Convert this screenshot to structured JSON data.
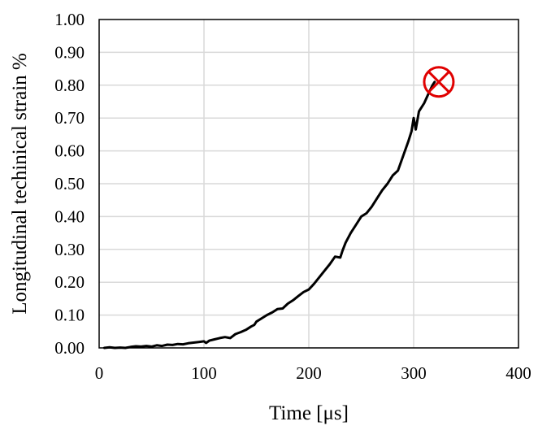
{
  "chart_data": {
    "type": "line",
    "title": "",
    "xlabel": "Time [μs]",
    "ylabel": "Longitudinal techinical strain %",
    "xlim": [
      0,
      400
    ],
    "ylim": [
      0,
      1.0
    ],
    "xticks": [
      0,
      100,
      200,
      300,
      400
    ],
    "xtick_labels": [
      "0",
      "100",
      "200",
      "300",
      "400"
    ],
    "yticks": [
      0,
      0.1,
      0.2,
      0.3,
      0.4,
      0.5,
      0.6,
      0.7,
      0.8,
      0.9,
      1.0
    ],
    "ytick_labels": [
      "0.00",
      "0.10",
      "0.20",
      "0.30",
      "0.40",
      "0.50",
      "0.60",
      "0.70",
      "0.80",
      "0.90",
      "1.00"
    ],
    "grid": true,
    "legend": "none",
    "series": [
      {
        "color": "#000000",
        "x": [
          5,
          10,
          15,
          20,
          25,
          30,
          35,
          40,
          45,
          50,
          55,
          60,
          65,
          70,
          75,
          80,
          85,
          90,
          95,
          100,
          102,
          105,
          110,
          115,
          120,
          125,
          130,
          135,
          140,
          145,
          148,
          150,
          155,
          160,
          165,
          170,
          175,
          180,
          185,
          190,
          195,
          200,
          205,
          210,
          215,
          220,
          225,
          230,
          232,
          235,
          240,
          245,
          250,
          255,
          260,
          265,
          270,
          275,
          280,
          285,
          290,
          295,
          298,
          300,
          302,
          305,
          310,
          315,
          318,
          320
        ],
        "y": [
          0.0,
          0.002,
          0.0,
          0.001,
          0.0,
          0.003,
          0.005,
          0.004,
          0.006,
          0.004,
          0.008,
          0.006,
          0.01,
          0.009,
          0.012,
          0.011,
          0.014,
          0.016,
          0.018,
          0.02,
          0.015,
          0.022,
          0.026,
          0.03,
          0.033,
          0.03,
          0.042,
          0.048,
          0.055,
          0.065,
          0.07,
          0.08,
          0.09,
          0.1,
          0.108,
          0.118,
          0.12,
          0.135,
          0.145,
          0.158,
          0.17,
          0.178,
          0.195,
          0.215,
          0.235,
          0.255,
          0.278,
          0.275,
          0.295,
          0.32,
          0.35,
          0.375,
          0.4,
          0.41,
          0.43,
          0.455,
          0.48,
          0.5,
          0.525,
          0.54,
          0.585,
          0.63,
          0.66,
          0.7,
          0.665,
          0.72,
          0.745,
          0.78,
          0.8,
          0.81
        ]
      }
    ],
    "failure_marker": {
      "x": 324,
      "y": 0.81,
      "color": "#e00000"
    }
  }
}
